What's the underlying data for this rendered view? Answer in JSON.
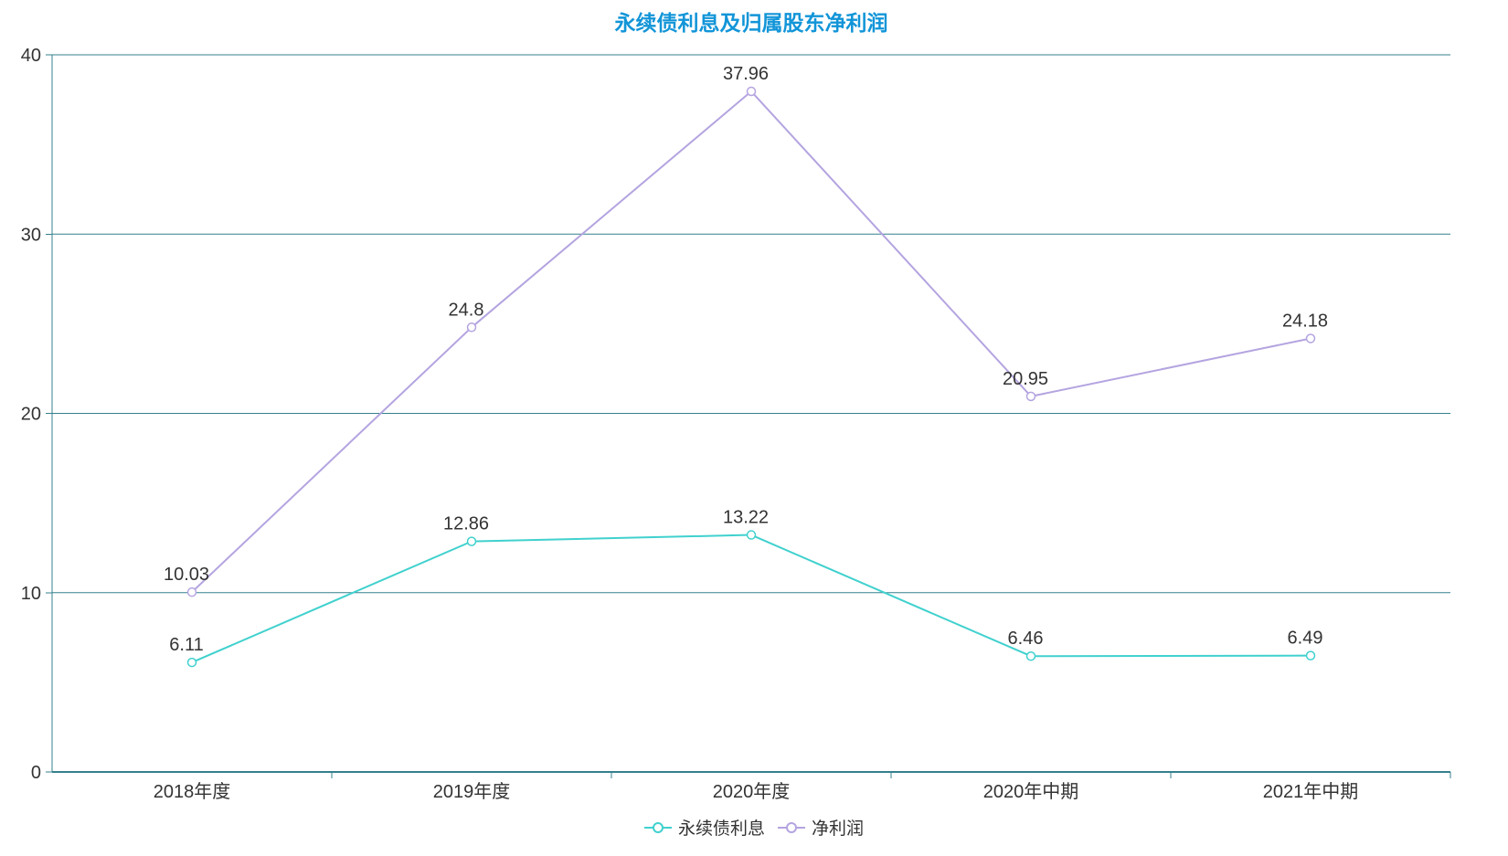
{
  "title": {
    "text": "永续债利息及归属股东净利润",
    "color": "#1295d8"
  },
  "chart_data": {
    "type": "line",
    "title": "永续债利息及归属股东净利润",
    "categories": [
      "2018年度",
      "2019年度",
      "2020年度",
      "2020年中期",
      "2021年中期"
    ],
    "series": [
      {
        "name": "永续债利息",
        "color": "#40d1ce",
        "values": [
          6.11,
          12.86,
          13.22,
          6.46,
          6.49
        ]
      },
      {
        "name": "净利润",
        "color": "#b4a4e0",
        "values": [
          10.03,
          24.8,
          37.96,
          20.95,
          24.18
        ]
      }
    ],
    "xlabel": "",
    "ylabel": "",
    "ylim": [
      0,
      40
    ],
    "y_ticks": [
      0,
      10,
      20,
      30,
      40
    ],
    "grid": true,
    "legend_position": "bottom",
    "marker": "hollow-circle",
    "colors": {
      "axis": "#35808d",
      "grid": "#35808d",
      "tick_label": "#333333",
      "data_label": "#333333"
    }
  }
}
